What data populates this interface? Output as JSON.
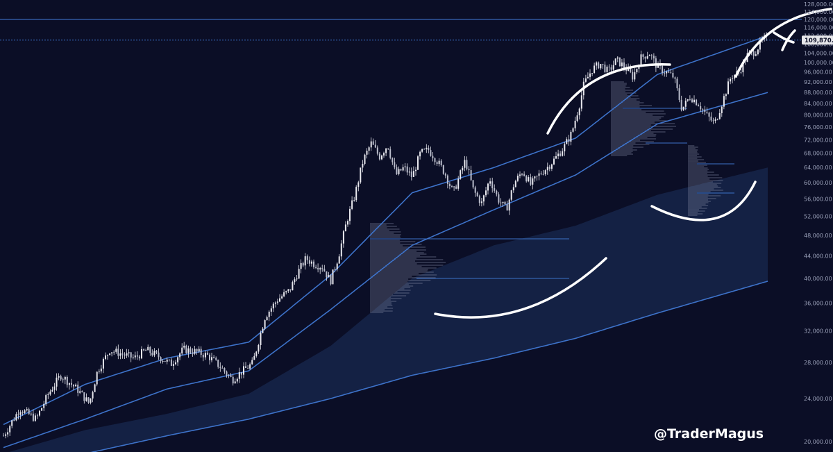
{
  "chart_data": {
    "type": "candlestick",
    "yscale": "log",
    "ylim": [
      20000,
      128000
    ],
    "y_ticks": [
      "128,000.00",
      "124,000.00",
      "120,000.00",
      "116,000.00",
      "112,000.00",
      "108,000.00",
      "104,000.00",
      "100,000.00",
      "96,000.00",
      "92,000.00",
      "88,000.00",
      "84,000.00",
      "80,000.00",
      "76,000.00",
      "72,000.00",
      "68,000.00",
      "64,000.00",
      "60,000.00",
      "56,000.00",
      "52,000.00",
      "48,000.00",
      "44,000.00",
      "40,000.00",
      "36,000.00",
      "32,000.00",
      "28,000.00",
      "24,000.00",
      "20,000.00"
    ],
    "last_price": 109870.96,
    "last_price_label": "109,870.96",
    "grid": false,
    "legend": "none",
    "price_path": [
      [
        0,
        20500
      ],
      [
        4,
        23000
      ],
      [
        8,
        22000
      ],
      [
        11,
        24500
      ],
      [
        14,
        26500
      ],
      [
        18,
        25000
      ],
      [
        21,
        23500
      ],
      [
        23,
        27000
      ],
      [
        26,
        29500
      ],
      [
        29,
        29000
      ],
      [
        32,
        28500
      ],
      [
        35,
        29500
      ],
      [
        38,
        28700
      ],
      [
        41,
        27800
      ],
      [
        44,
        29600
      ],
      [
        47,
        29300
      ],
      [
        50,
        28800
      ],
      [
        53,
        27500
      ],
      [
        56,
        26000
      ],
      [
        58,
        26800
      ],
      [
        61,
        27900
      ],
      [
        64,
        34000
      ],
      [
        67,
        36500
      ],
      [
        70,
        38000
      ],
      [
        72,
        41000
      ],
      [
        74,
        43500
      ],
      [
        76,
        42500
      ],
      [
        78,
        42000
      ],
      [
        80,
        39500
      ],
      [
        82,
        44000
      ],
      [
        84,
        51000
      ],
      [
        86,
        57000
      ],
      [
        88,
        66000
      ],
      [
        90,
        71000
      ],
      [
        92,
        67000
      ],
      [
        94,
        70500
      ],
      [
        96,
        62000
      ],
      [
        98,
        64000
      ],
      [
        100,
        61500
      ],
      [
        102,
        68000
      ],
      [
        104,
        69000
      ],
      [
        106,
        66000
      ],
      [
        108,
        62500
      ],
      [
        110,
        57500
      ],
      [
        111,
        60000
      ],
      [
        113,
        66000
      ],
      [
        115,
        58000
      ],
      [
        117,
        55000
      ],
      [
        119,
        61000
      ],
      [
        121,
        56000
      ],
      [
        123,
        53500
      ],
      [
        125,
        60000
      ],
      [
        127,
        63000
      ],
      [
        129,
        59500
      ],
      [
        131,
        62000
      ],
      [
        133,
        64000
      ],
      [
        135,
        66500
      ],
      [
        137,
        69500
      ],
      [
        139,
        74000
      ],
      [
        141,
        84000
      ],
      [
        142,
        91000
      ],
      [
        144,
        97000
      ],
      [
        146,
        99500
      ],
      [
        148,
        96000
      ],
      [
        150,
        101000
      ],
      [
        152,
        98000
      ],
      [
        154,
        94000
      ],
      [
        156,
        102000
      ],
      [
        158,
        104000
      ],
      [
        160,
        98000
      ],
      [
        162,
        96000
      ],
      [
        164,
        94000
      ],
      [
        166,
        82000
      ],
      [
        168,
        86500
      ],
      [
        170,
        84000
      ],
      [
        172,
        80000
      ],
      [
        174,
        77000
      ],
      [
        176,
        85000
      ],
      [
        178,
        94000
      ],
      [
        180,
        96000
      ],
      [
        182,
        103000
      ],
      [
        184,
        105000
      ],
      [
        186,
        110500
      ],
      [
        187,
        109870.96
      ]
    ],
    "moving_averages": [
      {
        "name": "",
        "color": "#3d72c9",
        "values": [
          [
            0,
            21500
          ],
          [
            20,
            25500
          ],
          [
            40,
            28500
          ],
          [
            60,
            30500
          ],
          [
            80,
            40500
          ],
          [
            100,
            57500
          ],
          [
            120,
            64000
          ],
          [
            140,
            72500
          ],
          [
            160,
            95000
          ],
          [
            187,
            112000
          ]
        ]
      },
      {
        "name": "",
        "color": "#3d72c9",
        "values": [
          [
            0,
            19500
          ],
          [
            20,
            22000
          ],
          [
            40,
            25000
          ],
          [
            60,
            27000
          ],
          [
            80,
            35000
          ],
          [
            100,
            46000
          ],
          [
            120,
            53500
          ],
          [
            140,
            62000
          ],
          [
            160,
            77000
          ],
          [
            187,
            88000
          ]
        ]
      },
      {
        "name": "",
        "color": "#3d72c9",
        "values": [
          [
            0,
            17500
          ],
          [
            20,
            19000
          ],
          [
            40,
            20500
          ],
          [
            60,
            22000
          ],
          [
            80,
            24000
          ],
          [
            100,
            26500
          ],
          [
            120,
            28500
          ],
          [
            140,
            31000
          ],
          [
            160,
            34500
          ],
          [
            187,
            39500
          ]
        ]
      }
    ],
    "band_upper": [
      [
        0,
        19000
      ],
      [
        20,
        21000
      ],
      [
        40,
        22500
      ],
      [
        60,
        24500
      ],
      [
        80,
        30000
      ],
      [
        100,
        40000
      ],
      [
        120,
        46000
      ],
      [
        140,
        50000
      ],
      [
        160,
        57000
      ],
      [
        187,
        64000
      ]
    ],
    "horizontal_levels": [
      {
        "label": "",
        "price": 120000,
        "color": "#3d72c9",
        "style": "solid"
      },
      {
        "label": "",
        "price": 109870.96,
        "color": "#3d72c9",
        "style": "dotted"
      }
    ],
    "annotations": [
      "bowl-arc-1",
      "cap-arc-1",
      "bowl-arc-2",
      "cap-arc-2",
      "x-mark"
    ]
  },
  "watermark": "@TraderMagus",
  "colors": {
    "background": "#0b0e26",
    "candles": "#e8e8ee",
    "ma_lines": "#3d72c9",
    "band_fill": "#16244a",
    "ink": "#ffffff",
    "price_tag": "#e6e6ea"
  }
}
